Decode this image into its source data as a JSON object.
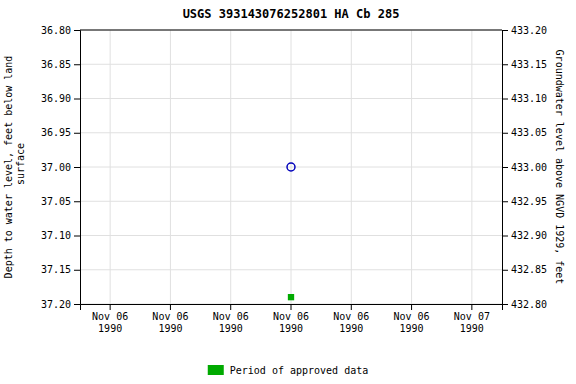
{
  "chart_data": {
    "type": "scatter",
    "title": "USGS 393143076252801 HA Cb 285",
    "y_label": "Depth to water level, feet below land\n surface",
    "y2_label": "Groundwater level above NGVD 1929, feet",
    "categories": [
      "Nov 06\n1990",
      "Nov 06\n1990",
      "Nov 06\n1990",
      "Nov 06\n1990",
      "Nov 06\n1990",
      "Nov 06\n1990",
      "Nov 07\n1990"
    ],
    "series": [
      {
        "color": "#0000bb",
        "marker": "circle",
        "values": [
          null,
          null,
          null,
          37.0,
          null,
          null,
          null
        ]
      },
      {
        "name": "Period of approved data",
        "color": "#00aa00",
        "marker": "square",
        "values": [
          null,
          null,
          null,
          37.19,
          null,
          null,
          null
        ]
      }
    ],
    "ylim": [
      37.2,
      36.8
    ],
    "yticks": [
      {
        "value": 36.8,
        "label": "36.80"
      },
      36.85,
      {
        "value": 36.9,
        "label": "36.90"
      },
      36.95,
      {
        "value": 37.0,
        "label": "37.00"
      },
      37.05,
      {
        "value": 37.1,
        "label": "37.10"
      },
      37.15,
      {
        "value": 37.2,
        "label": "37.20"
      }
    ],
    "y2lim": [
      432.8,
      433.2
    ],
    "y2ticks": [
      {
        "value": 433.2,
        "label": "433.20"
      },
      433.15,
      {
        "value": 433.1,
        "label": "433.10"
      },
      433.05,
      {
        "value": 433.0,
        "label": "433.00"
      },
      432.95,
      {
        "value": 432.9,
        "label": "432.90"
      },
      432.85,
      {
        "value": 432.8,
        "label": "432.80"
      }
    ],
    "grid": true,
    "legend": "bottom"
  }
}
